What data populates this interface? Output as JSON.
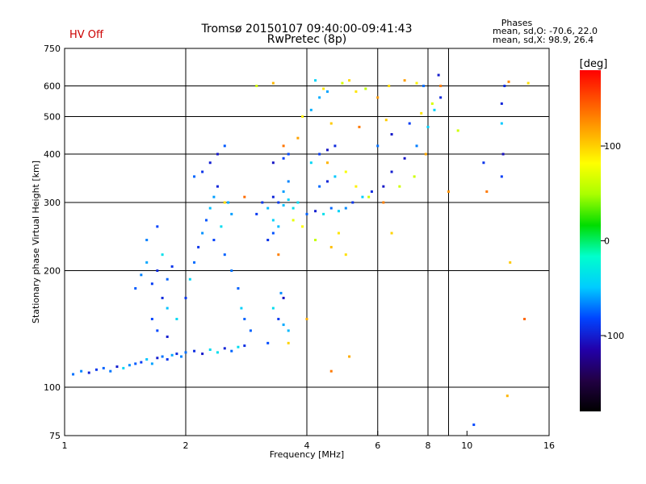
{
  "header": {
    "title_line1": "Tromsø 20150107 09:40:00-09:41:43",
    "title_line2": "RwPretec (8p)",
    "status": "HV Off",
    "status_color": "#cc0000",
    "stats_title": "Phases",
    "stats_line1": "mean, sd,O: -70.6, 22.0",
    "stats_line2": "mean, sd,X:  98.9, 26.4"
  },
  "colorbar": {
    "label": "[deg]",
    "ticks": [
      "100",
      "0",
      "-100"
    ],
    "tick_values": [
      100,
      0,
      -100
    ],
    "range": [
      -180,
      180
    ],
    "colors": [
      "#000000",
      "#220044",
      "#2200aa",
      "#0044ff",
      "#00ccff",
      "#00ffcc",
      "#00dd00",
      "#aaff00",
      "#ffff00",
      "#ffaa00",
      "#ff5500",
      "#ff0000"
    ]
  },
  "chart_data": {
    "type": "scatter",
    "title": "Tromsø 20150107 09:40:00-09:41:43",
    "subtitle": "RwPretec (8p)",
    "xlabel": "Frequency [MHz]",
    "ylabel": "Stationary phase Virtual Height [km]",
    "xscale": "log",
    "yscale": "log",
    "xlim": [
      1,
      16
    ],
    "ylim": [
      75,
      750
    ],
    "xticks": [
      1,
      2,
      4,
      6,
      8,
      10,
      16
    ],
    "yticks": [
      75,
      100,
      200,
      300,
      400,
      500,
      600,
      750
    ],
    "grid_x": [
      2,
      4,
      6,
      8,
      9
    ],
    "grid_y": [
      100,
      200,
      300,
      400,
      500,
      600
    ],
    "color_by": "phase [deg]",
    "series": [
      {
        "label": "O-mode",
        "phase_mean": -70.6,
        "phase_sd": 22.0,
        "points": [
          [
            1.05,
            108
          ],
          [
            1.1,
            110
          ],
          [
            1.15,
            109
          ],
          [
            1.2,
            111
          ],
          [
            1.25,
            112
          ],
          [
            1.3,
            110
          ],
          [
            1.35,
            113
          ],
          [
            1.4,
            112
          ],
          [
            1.45,
            114
          ],
          [
            1.5,
            115
          ],
          [
            1.55,
            116
          ],
          [
            1.6,
            118
          ],
          [
            1.65,
            115
          ],
          [
            1.7,
            119
          ],
          [
            1.75,
            120
          ],
          [
            1.8,
            118
          ],
          [
            1.85,
            121
          ],
          [
            1.9,
            122
          ],
          [
            1.95,
            120
          ],
          [
            2.0,
            123
          ],
          [
            2.1,
            124
          ],
          [
            2.2,
            122
          ],
          [
            2.3,
            125
          ],
          [
            2.4,
            123
          ],
          [
            2.5,
            126
          ],
          [
            2.6,
            124
          ],
          [
            2.7,
            127
          ],
          [
            2.8,
            128
          ],
          [
            1.5,
            180
          ],
          [
            1.55,
            195
          ],
          [
            1.6,
            210
          ],
          [
            1.65,
            185
          ],
          [
            1.7,
            200
          ],
          [
            1.75,
            220
          ],
          [
            1.8,
            190
          ],
          [
            1.85,
            205
          ],
          [
            1.6,
            240
          ],
          [
            1.7,
            260
          ],
          [
            1.75,
            170
          ],
          [
            1.8,
            160
          ],
          [
            1.65,
            150
          ],
          [
            1.7,
            140
          ],
          [
            1.8,
            135
          ],
          [
            1.9,
            150
          ],
          [
            2.0,
            170
          ],
          [
            2.05,
            190
          ],
          [
            2.1,
            210
          ],
          [
            2.15,
            230
          ],
          [
            2.2,
            250
          ],
          [
            2.25,
            270
          ],
          [
            2.3,
            290
          ],
          [
            2.35,
            310
          ],
          [
            2.4,
            330
          ],
          [
            2.2,
            360
          ],
          [
            2.1,
            350
          ],
          [
            2.3,
            380
          ],
          [
            2.4,
            400
          ],
          [
            2.5,
            420
          ],
          [
            2.55,
            300
          ],
          [
            2.6,
            280
          ],
          [
            2.45,
            260
          ],
          [
            2.35,
            240
          ],
          [
            2.5,
            220
          ],
          [
            2.6,
            200
          ],
          [
            2.7,
            180
          ],
          [
            2.75,
            160
          ],
          [
            2.8,
            150
          ],
          [
            2.9,
            140
          ],
          [
            3.0,
            280
          ],
          [
            3.1,
            300
          ],
          [
            3.2,
            290
          ],
          [
            3.3,
            310
          ],
          [
            3.4,
            300
          ],
          [
            3.5,
            295
          ],
          [
            3.6,
            305
          ],
          [
            3.7,
            290
          ],
          [
            3.8,
            300
          ],
          [
            3.3,
            270
          ],
          [
            3.4,
            260
          ],
          [
            3.5,
            320
          ],
          [
            3.6,
            340
          ],
          [
            3.3,
            380
          ],
          [
            3.5,
            390
          ],
          [
            3.6,
            400
          ],
          [
            3.2,
            240
          ],
          [
            3.3,
            250
          ],
          [
            3.5,
            145
          ],
          [
            3.6,
            140
          ],
          [
            3.4,
            150
          ],
          [
            3.3,
            160
          ],
          [
            3.5,
            170
          ],
          [
            3.2,
            130
          ],
          [
            3.45,
            175
          ],
          [
            4.0,
            280
          ],
          [
            4.2,
            285
          ],
          [
            4.4,
            280
          ],
          [
            4.6,
            290
          ],
          [
            4.8,
            285
          ],
          [
            5.0,
            290
          ],
          [
            4.3,
            330
          ],
          [
            4.5,
            340
          ],
          [
            4.7,
            350
          ],
          [
            4.1,
            380
          ],
          [
            4.3,
            400
          ],
          [
            4.5,
            410
          ],
          [
            4.7,
            420
          ],
          [
            4.1,
            520
          ],
          [
            4.3,
            560
          ],
          [
            4.5,
            580
          ],
          [
            4.2,
            620
          ],
          [
            5.2,
            300
          ],
          [
            5.5,
            310
          ],
          [
            5.8,
            320
          ],
          [
            6.2,
            330
          ],
          [
            6.5,
            360
          ],
          [
            7.0,
            390
          ],
          [
            7.5,
            420
          ],
          [
            8.0,
            470
          ],
          [
            8.3,
            520
          ],
          [
            8.6,
            560
          ],
          [
            6.0,
            420
          ],
          [
            6.5,
            450
          ],
          [
            7.2,
            480
          ],
          [
            7.8,
            600
          ],
          [
            8.5,
            640
          ],
          [
            10.4,
            80
          ],
          [
            11.0,
            380
          ],
          [
            12.2,
            350
          ],
          [
            12.2,
            480
          ],
          [
            12.2,
            540
          ],
          [
            12.4,
            600
          ],
          [
            12.3,
            400
          ]
        ]
      },
      {
        "label": "X-mode",
        "phase_mean": 98.9,
        "phase_sd": 26.4,
        "points": [
          [
            3.3,
            610
          ],
          [
            3.0,
            600
          ],
          [
            4.4,
            590
          ],
          [
            4.9,
            610
          ],
          [
            5.1,
            620
          ],
          [
            5.3,
            580
          ],
          [
            5.6,
            590
          ],
          [
            6.0,
            560
          ],
          [
            6.4,
            600
          ],
          [
            7.0,
            620
          ],
          [
            7.5,
            610
          ],
          [
            3.5,
            420
          ],
          [
            3.8,
            440
          ],
          [
            4.5,
            380
          ],
          [
            5.0,
            360
          ],
          [
            5.3,
            330
          ],
          [
            5.7,
            310
          ],
          [
            6.2,
            300
          ],
          [
            6.8,
            330
          ],
          [
            7.4,
            350
          ],
          [
            3.7,
            270
          ],
          [
            3.9,
            260
          ],
          [
            4.2,
            240
          ],
          [
            4.6,
            230
          ],
          [
            5.0,
            220
          ],
          [
            3.9,
            500
          ],
          [
            4.6,
            480
          ],
          [
            5.4,
            470
          ],
          [
            6.3,
            490
          ],
          [
            7.7,
            510
          ],
          [
            8.2,
            540
          ],
          [
            8.6,
            600
          ],
          [
            4.0,
            150
          ],
          [
            3.6,
            130
          ],
          [
            4.6,
            110
          ],
          [
            5.1,
            120
          ],
          [
            2.5,
            300
          ],
          [
            2.8,
            310
          ],
          [
            3.4,
            220
          ],
          [
            4.8,
            250
          ],
          [
            6.5,
            250
          ],
          [
            7.9,
            400
          ],
          [
            9.0,
            320
          ],
          [
            11.2,
            320
          ],
          [
            12.8,
            210
          ],
          [
            13.9,
            150
          ],
          [
            12.6,
            95
          ],
          [
            12.7,
            615
          ],
          [
            14.2,
            610
          ],
          [
            9.5,
            460
          ]
        ]
      }
    ]
  }
}
